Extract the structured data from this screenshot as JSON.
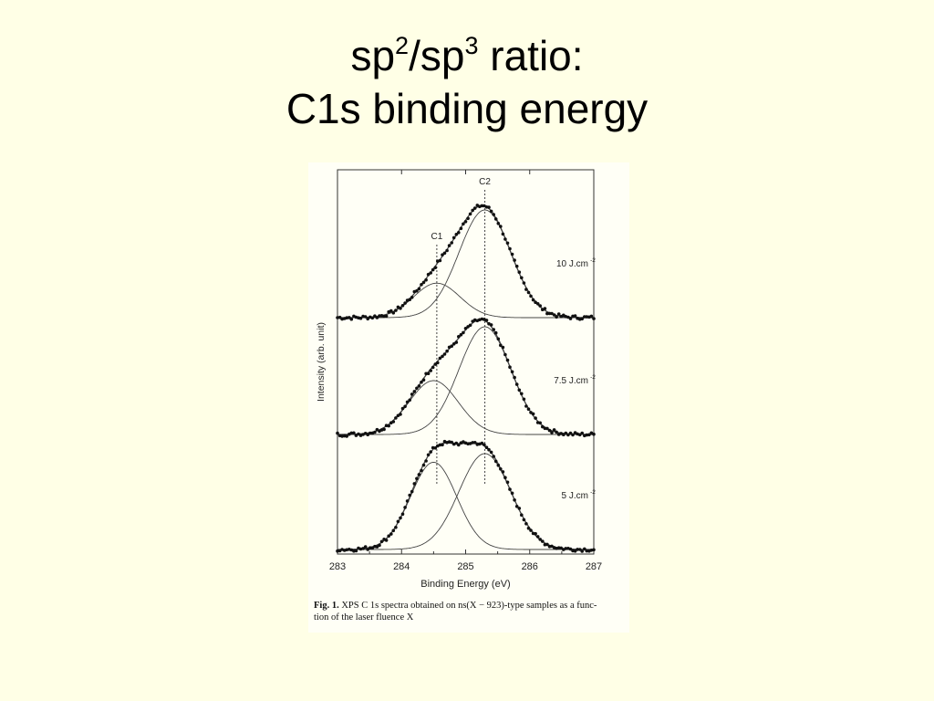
{
  "slide": {
    "title_line1_parts": [
      "sp",
      "2",
      "/sp",
      "3",
      " ratio:"
    ],
    "title_line2": "C1s binding energy"
  },
  "caption": {
    "label": "Fig. 1.",
    "text_line1": "XPS C 1s spectra obtained on ns(X − 923)-type samples as a func-",
    "text_line2": "tion of the laser fluence X"
  },
  "chart_data": {
    "type": "line",
    "xlabel": "Binding Energy (eV)",
    "ylabel": "Intensity (arb. unit)",
    "xlim": [
      283,
      287
    ],
    "x_ticks": [
      283,
      284,
      285,
      286,
      287
    ],
    "x_tick_labels": [
      "283",
      "284",
      "285",
      "286",
      "287"
    ],
    "reference_lines": [
      {
        "label": "C1",
        "x": 284.55
      },
      {
        "label": "C2",
        "x": 285.3
      }
    ],
    "colors": {
      "data": "#111111",
      "fit": "#444444",
      "refline": "#444444"
    },
    "panels": [
      {
        "label": "10 J.cm",
        "label_sup": "-2",
        "baseline": 0.0,
        "peaks": [
          {
            "name": "C1",
            "center": 284.55,
            "height": 0.32,
            "fwhm": 0.85
          },
          {
            "name": "C2",
            "center": 285.3,
            "height": 1.0,
            "fwhm": 0.95
          }
        ]
      },
      {
        "label": "7.5 J.cm",
        "label_sup": "-2",
        "baseline": 0.0,
        "peaks": [
          {
            "name": "C1",
            "center": 284.5,
            "height": 0.5,
            "fwhm": 0.9
          },
          {
            "name": "C2",
            "center": 285.3,
            "height": 1.0,
            "fwhm": 0.95
          }
        ]
      },
      {
        "label": "5 J.cm",
        "label_sup": "-2",
        "baseline": 0.0,
        "peaks": [
          {
            "name": "C1",
            "center": 284.5,
            "height": 0.81,
            "fwhm": 0.85
          },
          {
            "name": "C2",
            "center": 285.3,
            "height": 0.89,
            "fwhm": 0.95
          }
        ]
      }
    ]
  }
}
